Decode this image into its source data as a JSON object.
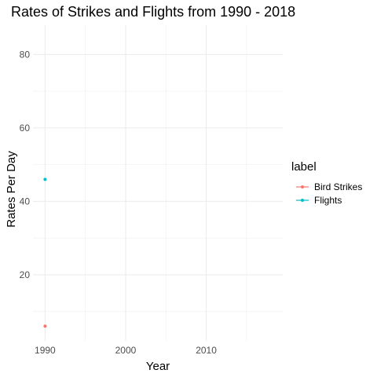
{
  "chart_data": {
    "type": "line",
    "title": "Rates of Strikes and Flights from 1990 - 2018",
    "xlabel": "Year",
    "ylabel": "Rates Per Day",
    "xlim": [
      1988.5,
      2019.5
    ],
    "ylim": [
      2,
      88
    ],
    "x_ticks": [
      1990,
      2000,
      2010
    ],
    "y_ticks": [
      20,
      40,
      60,
      80
    ],
    "grid": true,
    "legend": {
      "title": "label",
      "placement": "right"
    },
    "series": [
      {
        "name": "Bird Strikes",
        "color": "#F8766D",
        "points": [
          {
            "x": 1990,
            "y": 6
          }
        ]
      },
      {
        "name": "Flights",
        "color": "#00BFC4",
        "points": [
          {
            "x": 1990,
            "y": 46
          }
        ]
      }
    ]
  }
}
